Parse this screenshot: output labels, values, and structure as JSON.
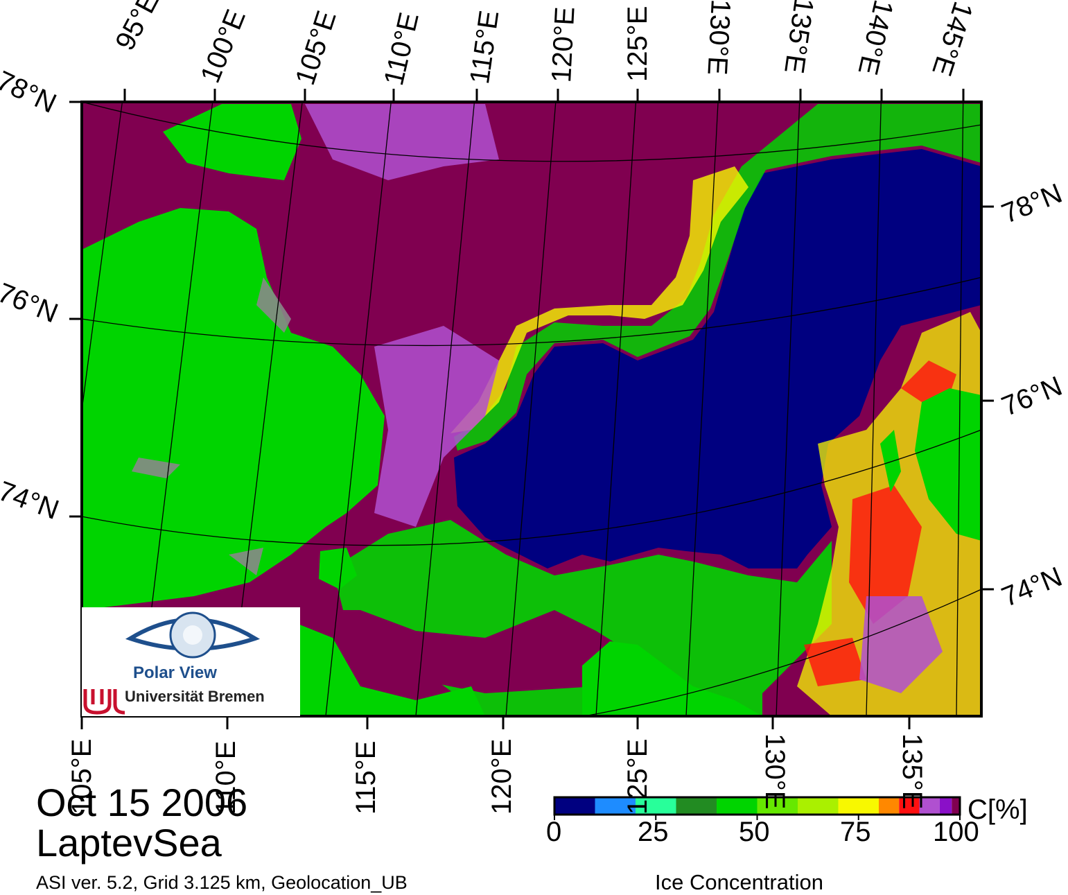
{
  "map": {
    "date": "Oct 15 2006",
    "region": "LaptevSea",
    "footer": "ASI ver. 5.2,  Grid 3.125 km, Geolocation_UB",
    "top_longitudes": [
      "95°E",
      "100°E",
      "105°E",
      "110°E",
      "115°E",
      "120°E",
      "125°E",
      "130°E",
      "135°E",
      "140°E",
      "145°E"
    ],
    "bottom_longitudes": [
      "105°E",
      "110°E",
      "115°E",
      "120°E",
      "125°E",
      "130°E",
      "135°E"
    ],
    "left_latitudes": [
      "78°N",
      "76°N",
      "74°N"
    ],
    "right_latitudes": [
      "78°N",
      "76°N",
      "74°N"
    ],
    "colors": {
      "land": "#00d400",
      "open_water": "#000080",
      "full_ice": "#800050",
      "coast_gray": "#888888"
    }
  },
  "colorbar": {
    "title": "Ice Concentration",
    "unit": "C[%]",
    "ticks": [
      "0",
      "25",
      "50",
      "75",
      "100"
    ],
    "min": 0,
    "max": 100,
    "bins": [
      {
        "from": 0,
        "to": 10,
        "color": "#000080"
      },
      {
        "from": 10,
        "to": 20,
        "color": "#1e8cff"
      },
      {
        "from": 20,
        "to": 30,
        "color": "#28ff9a"
      },
      {
        "from": 30,
        "to": 40,
        "color": "#228b22"
      },
      {
        "from": 40,
        "to": 50,
        "color": "#00d400"
      },
      {
        "from": 50,
        "to": 60,
        "color": "#66e800"
      },
      {
        "from": 60,
        "to": 70,
        "color": "#aaf000"
      },
      {
        "from": 70,
        "to": 80,
        "color": "#f8f800"
      },
      {
        "from": 80,
        "to": 85,
        "color": "#ff8800"
      },
      {
        "from": 85,
        "to": 90,
        "color": "#ff1010"
      },
      {
        "from": 90,
        "to": 95,
        "color": "#b050d0"
      },
      {
        "from": 95,
        "to": 98,
        "color": "#8a10c8"
      },
      {
        "from": 98,
        "to": 100,
        "color": "#800050"
      }
    ]
  },
  "logo": {
    "title": "Polar View",
    "institution": "Universität Bremen"
  }
}
